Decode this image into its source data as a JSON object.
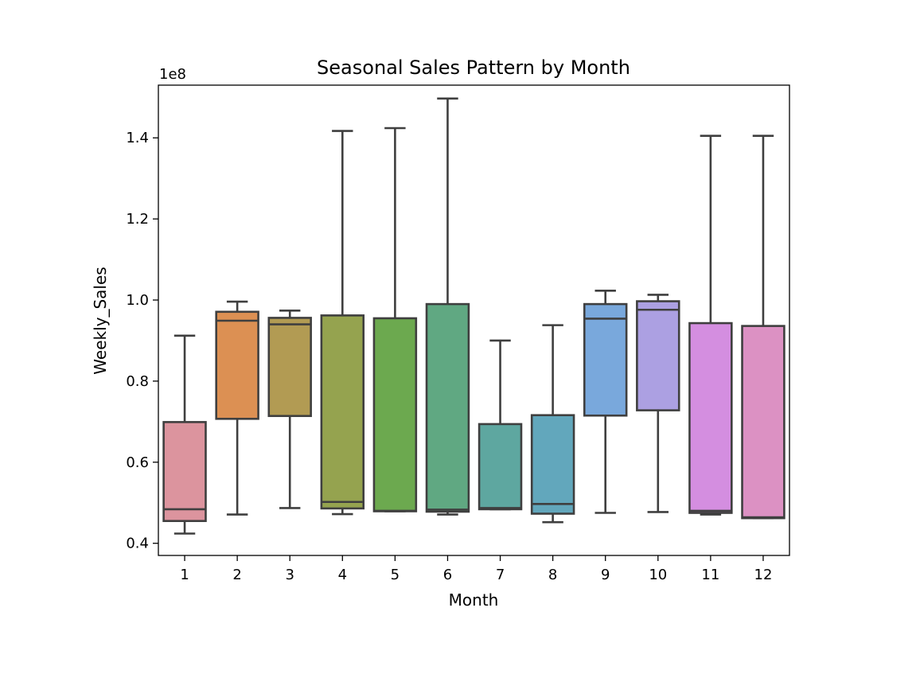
{
  "chart_data": {
    "type": "box",
    "title": "Seasonal Sales Pattern by Month",
    "xlabel": "Month",
    "ylabel": "Weekly_Sales",
    "y_scale_label": "1e8",
    "ylim": [
      0.37,
      1.53
    ],
    "y_ticks": [
      "0.4",
      "0.6",
      "0.8",
      "1.0",
      "1.2",
      "1.4"
    ],
    "grid": false,
    "categories": [
      "1",
      "2",
      "3",
      "4",
      "5",
      "6",
      "7",
      "8",
      "9",
      "10",
      "11",
      "12"
    ],
    "boxes": [
      {
        "month": "1",
        "whisker_low": 0.424,
        "q1": 0.455,
        "median": 0.484,
        "q3": 0.699,
        "whisker_high": 0.912,
        "color": "#dc949e"
      },
      {
        "month": "2",
        "whisker_low": 0.471,
        "q1": 0.707,
        "median": 0.949,
        "q3": 0.971,
        "whisker_high": 0.996,
        "color": "#dc9053"
      },
      {
        "month": "3",
        "whisker_low": 0.487,
        "q1": 0.714,
        "median": 0.94,
        "q3": 0.956,
        "whisker_high": 0.974,
        "color": "#b29b53"
      },
      {
        "month": "4",
        "whisker_low": 0.472,
        "q1": 0.486,
        "median": 0.502,
        "q3": 0.962,
        "whisker_high": 1.417,
        "color": "#95a34f"
      },
      {
        "month": "5",
        "whisker_low": 0.479,
        "q1": 0.479,
        "median": 0.48,
        "q3": 0.955,
        "whisker_high": 1.424,
        "color": "#6ca94f"
      },
      {
        "month": "6",
        "whisker_low": 0.471,
        "q1": 0.478,
        "median": 0.483,
        "q3": 0.99,
        "whisker_high": 1.497,
        "color": "#60a882"
      },
      {
        "month": "7",
        "whisker_low": 0.484,
        "q1": 0.484,
        "median": 0.487,
        "q3": 0.694,
        "whisker_high": 0.9,
        "color": "#5ea7a0"
      },
      {
        "month": "8",
        "whisker_low": 0.452,
        "q1": 0.473,
        "median": 0.497,
        "q3": 0.716,
        "whisker_high": 0.938,
        "color": "#62a7bc"
      },
      {
        "month": "9",
        "whisker_low": 0.475,
        "q1": 0.715,
        "median": 0.954,
        "q3": 0.99,
        "whisker_high": 1.023,
        "color": "#79a8dc"
      },
      {
        "month": "10",
        "whisker_low": 0.477,
        "q1": 0.728,
        "median": 0.976,
        "q3": 0.997,
        "whisker_high": 1.013,
        "color": "#aca0e2"
      },
      {
        "month": "11",
        "whisker_low": 0.471,
        "q1": 0.475,
        "median": 0.48,
        "q3": 0.943,
        "whisker_high": 1.405,
        "color": "#d48ee0"
      },
      {
        "month": "12",
        "whisker_low": 0.462,
        "q1": 0.462,
        "median": 0.464,
        "q3": 0.936,
        "whisker_high": 1.405,
        "color": "#dc91c3"
      }
    ]
  }
}
